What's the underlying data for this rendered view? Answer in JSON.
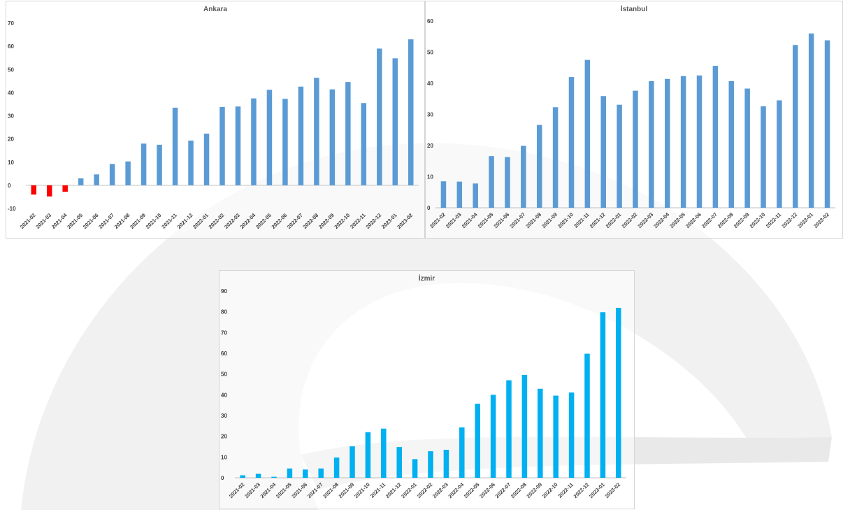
{
  "colors": {
    "positive_bar": "#5b9bd5",
    "negative_bar": "#ff0000",
    "izmir_bar": "#00b0f0",
    "tick_text": "#404040",
    "title_text": "#595959"
  },
  "chart_data": [
    {
      "type": "bar",
      "title": "Ankara",
      "categories": [
        "2021-02",
        "2021-03",
        "2021-04",
        "2021-05",
        "2021-06",
        "2021-07",
        "2021-08",
        "2021-09",
        "2021-10",
        "2021-11",
        "2021-12",
        "2022-01",
        "2022-02",
        "2022-03",
        "2022-04",
        "2022-05",
        "2022-06",
        "2022-07",
        "2022-08",
        "2022-09",
        "2022-10",
        "2022-11",
        "2022-12",
        "2023-01",
        "2023-02"
      ],
      "values": [
        -4,
        -4.8,
        -2.8,
        3,
        4.7,
        9.2,
        10.3,
        18,
        17.5,
        33.5,
        19.3,
        22.3,
        33.8,
        34,
        37.5,
        41.2,
        37.3,
        42.6,
        46.4,
        41.4,
        44.6,
        35.5,
        59,
        54.8,
        63
      ],
      "ylim": [
        -10,
        70
      ],
      "yticks": [
        -10,
        0,
        10,
        20,
        30,
        40,
        50,
        60,
        70
      ],
      "xlabel": "",
      "ylabel": "",
      "grid": false,
      "legend": "none"
    },
    {
      "type": "bar",
      "title": "İstanbul",
      "categories": [
        "2021-02",
        "2021-03",
        "2021-04",
        "2021-05",
        "2021-06",
        "2021-07",
        "2021-08",
        "2021-09",
        "2021-10",
        "2021-11",
        "2021-12",
        "2022-01",
        "2022-02",
        "2022-03",
        "2022-04",
        "2022-05",
        "2022-06",
        "2022-07",
        "2022-08",
        "2022-09",
        "2022-10",
        "2022-11",
        "2022-12",
        "2023-01",
        "2023-02"
      ],
      "values": [
        8.5,
        8.4,
        7.8,
        16.6,
        16.3,
        19.9,
        26.6,
        32.3,
        42,
        47.5,
        35.9,
        33.1,
        37.6,
        40.7,
        41.4,
        42.3,
        42.5,
        45.6,
        40.7,
        38.3,
        32.6,
        34.5,
        52.3,
        56,
        53.8
      ],
      "ylim": [
        0,
        60
      ],
      "yticks": [
        0,
        10,
        20,
        30,
        40,
        50,
        60
      ],
      "xlabel": "",
      "ylabel": "",
      "grid": false,
      "legend": "none"
    },
    {
      "type": "bar",
      "title": "İzmir",
      "categories": [
        "2021-02",
        "2021-03",
        "2021-04",
        "2021-05",
        "2021-06",
        "2021-07",
        "2021-08",
        "2021-09",
        "2021-10",
        "2021-11",
        "2021-12",
        "2022-01",
        "2022-02",
        "2022-03",
        "2022-04",
        "2022-05",
        "2022-06",
        "2022-07",
        "2022-08",
        "2022-09",
        "2022-10",
        "2022-11",
        "2022-12",
        "2023-01",
        "2023-02"
      ],
      "values": [
        1.2,
        2,
        0.5,
        4.5,
        4,
        4.5,
        9.8,
        15.2,
        22,
        23.7,
        14.8,
        9,
        12.8,
        13.5,
        24.3,
        35.7,
        40,
        47,
        49.6,
        42.9,
        39.6,
        41.1,
        59.8,
        79.8,
        81.9
      ],
      "ylim": [
        0,
        90
      ],
      "yticks": [
        0,
        10,
        20,
        30,
        40,
        50,
        60,
        70,
        80,
        90
      ],
      "xlabel": "",
      "ylabel": "",
      "grid": false,
      "legend": "none"
    }
  ]
}
